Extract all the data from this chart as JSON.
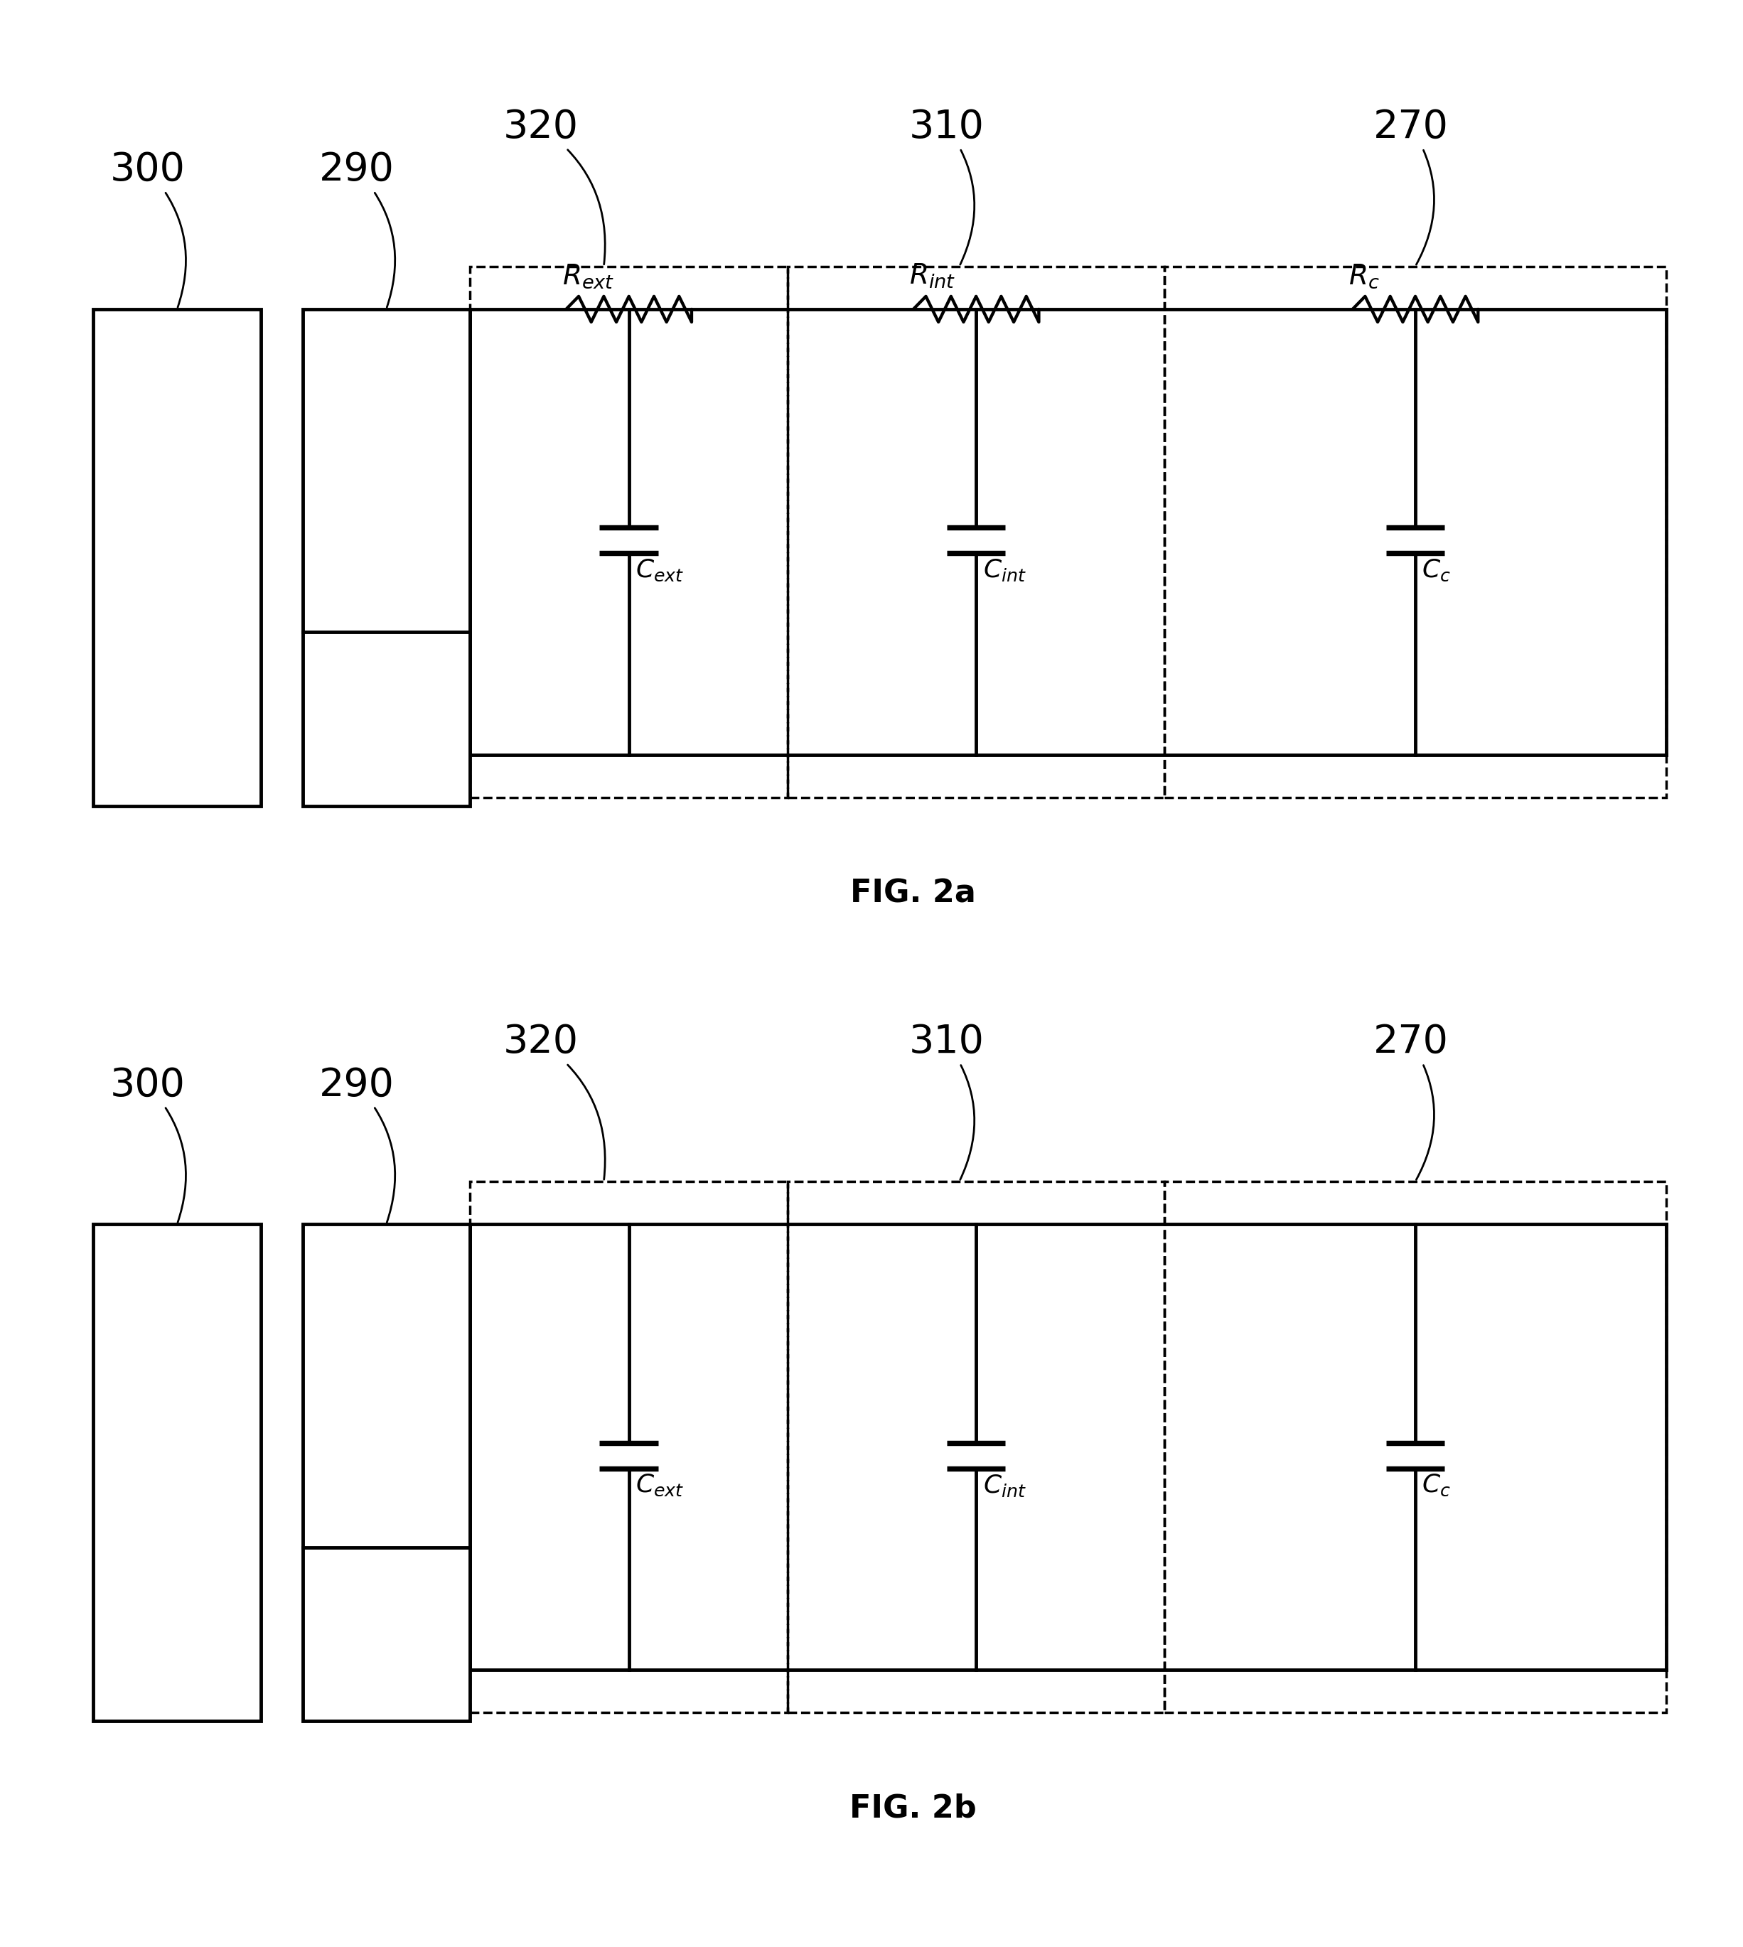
{
  "fig_width": 24.52,
  "fig_height": 27.39,
  "bg_color": "#ffffff",
  "line_color": "#000000",
  "line_width": 3.5,
  "dashed_lw": 2.5,
  "fig2a_label": "FIG. 2a",
  "fig2b_label": "FIG. 2b",
  "label_fontsize": 32,
  "number_fontsize": 40,
  "component_fontsize": 28,
  "cap_label_fontsize": 26
}
